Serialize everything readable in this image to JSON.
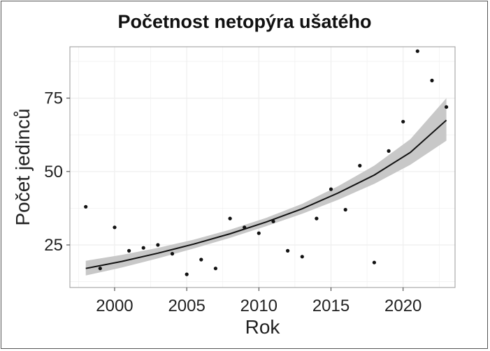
{
  "chart_data": {
    "type": "scatter",
    "title": "Početnost netopýra ušatého",
    "xlabel": "Rok",
    "ylabel": "Počet jedinců",
    "xlim": [
      1996.9,
      2023.6
    ],
    "ylim": [
      10.5,
      92.5
    ],
    "x_ticks": [
      "2000",
      "2005",
      "2010",
      "2015",
      "2020"
    ],
    "y_ticks": [
      "25",
      "50",
      "75"
    ],
    "grid": true,
    "series": [
      {
        "points": [
          {
            "x": 1998,
            "y": 38
          },
          {
            "x": 1999,
            "y": 17
          },
          {
            "x": 2000,
            "y": 31
          },
          {
            "x": 2001,
            "y": 23
          },
          {
            "x": 2002,
            "y": 24
          },
          {
            "x": 2003,
            "y": 25
          },
          {
            "x": 2004,
            "y": 22
          },
          {
            "x": 2005,
            "y": 15
          },
          {
            "x": 2006,
            "y": 20
          },
          {
            "x": 2007,
            "y": 17
          },
          {
            "x": 2008,
            "y": 34
          },
          {
            "x": 2009,
            "y": 31
          },
          {
            "x": 2010,
            "y": 29
          },
          {
            "x": 2011,
            "y": 33
          },
          {
            "x": 2012,
            "y": 23
          },
          {
            "x": 2013,
            "y": 21
          },
          {
            "x": 2014,
            "y": 34
          },
          {
            "x": 2015,
            "y": 44
          },
          {
            "x": 2016,
            "y": 37
          },
          {
            "x": 2017,
            "y": 52
          },
          {
            "x": 2018,
            "y": 19
          },
          {
            "x": 2019,
            "y": 57
          },
          {
            "x": 2020,
            "y": 67
          },
          {
            "x": 2021,
            "y": 91
          },
          {
            "x": 2022,
            "y": 81
          },
          {
            "x": 2023,
            "y": 72
          }
        ]
      }
    ],
    "trend": {
      "x": [
        1998,
        2000.5,
        2003,
        2005.5,
        2008,
        2010.5,
        2013,
        2015.5,
        2018,
        2020.5,
        2023
      ],
      "y": [
        17,
        19.4,
        22.2,
        25.3,
        28.8,
        32.8,
        37.3,
        42.7,
        48.8,
        56.5,
        67.5
      ],
      "upper": [
        19.6,
        21.6,
        24,
        26.8,
        30.2,
        34.2,
        39.0,
        45.0,
        52.0,
        61.0,
        75.0
      ],
      "lower": [
        14.6,
        17.3,
        20.4,
        23.8,
        27.4,
        31.4,
        35.6,
        40.4,
        45.8,
        52.3,
        60.5
      ]
    },
    "colors": {
      "points": "#111111",
      "line": "#111111",
      "band": "#c8c8c8",
      "grid": "#eeeeee",
      "panel_border": "#999999"
    }
  }
}
